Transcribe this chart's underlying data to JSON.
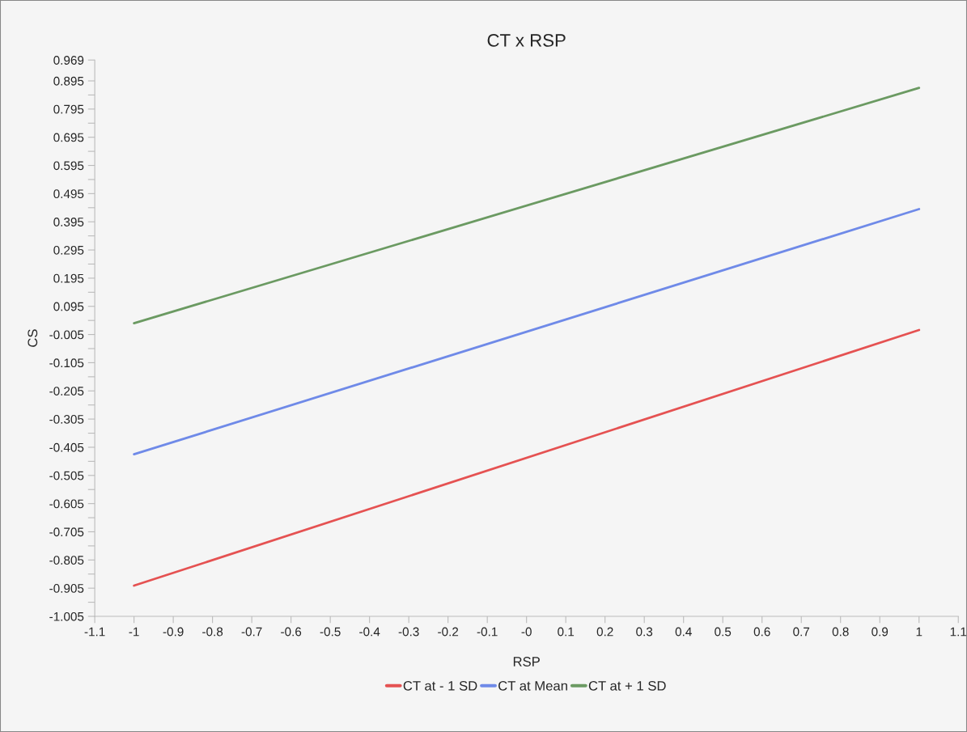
{
  "chart_data": {
    "type": "line",
    "title": "CT x RSP",
    "xlabel": "RSP",
    "ylabel": "CS",
    "x": [
      -1,
      1
    ],
    "series": [
      {
        "name": "CT at - 1 SD",
        "color": "#e55252",
        "values": [
          -0.896,
          0.011
        ]
      },
      {
        "name": "CT at Mean",
        "color": "#6f8ae8",
        "values": [
          -0.43,
          0.44
        ]
      },
      {
        "name": "CT at + 1 SD",
        "color": "#6b9a62",
        "values": [
          0.035,
          0.87
        ]
      }
    ],
    "xlim": [
      -1.1,
      1.1
    ],
    "xticks": [
      -1.1,
      -1,
      -0.9,
      -0.8,
      -0.7,
      -0.6,
      -0.5,
      -0.4,
      -0.3,
      -0.2,
      -0.1,
      {
        "value": 0,
        "label": "-0"
      },
      0.1,
      0.2,
      0.3,
      0.4,
      0.5,
      0.6,
      0.7,
      0.8,
      0.9,
      1,
      1.1
    ],
    "ylim": [
      -1.005,
      0.969
    ],
    "yticks": [
      0.969,
      0.895,
      {
        "value": 0.845,
        "label": null
      },
      0.795,
      {
        "value": 0.745,
        "label": null
      },
      0.695,
      {
        "value": 0.645,
        "label": null
      },
      0.595,
      {
        "value": 0.545,
        "label": null
      },
      0.495,
      {
        "value": 0.445,
        "label": null
      },
      0.395,
      {
        "value": 0.345,
        "label": null
      },
      0.295,
      {
        "value": 0.245,
        "label": null
      },
      0.195,
      {
        "value": 0.145,
        "label": null
      },
      0.095,
      {
        "value": 0.045,
        "label": null
      },
      -0.005,
      {
        "value": -0.055,
        "label": null
      },
      -0.105,
      {
        "value": -0.155,
        "label": null
      },
      -0.205,
      {
        "value": -0.255,
        "label": null
      },
      -0.305,
      {
        "value": -0.355,
        "label": null
      },
      -0.405,
      {
        "value": -0.455,
        "label": null
      },
      -0.505,
      {
        "value": -0.555,
        "label": null
      },
      -0.605,
      {
        "value": -0.655,
        "label": null
      },
      -0.705,
      {
        "value": -0.755,
        "label": null
      },
      -0.805,
      {
        "value": -0.855,
        "label": null
      },
      -0.905,
      {
        "value": -0.955,
        "label": null
      },
      -1.005
    ],
    "grid": false,
    "legend": "bottom",
    "marker": "none",
    "line_style": "solid"
  }
}
